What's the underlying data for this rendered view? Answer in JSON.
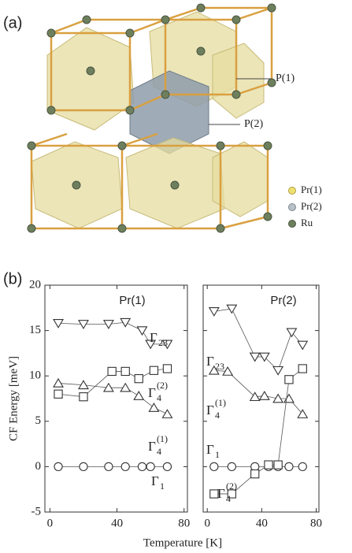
{
  "panel_a": {
    "label": "(a)",
    "annotations": [
      "P(1)",
      "P(2)"
    ],
    "legend": [
      "Pr(1)",
      "Pr(2)",
      "Ru"
    ]
  },
  "panel_b": {
    "label": "(b)",
    "xlabel": "Temperature [K]",
    "ylabel": "CF Energy [meV]"
  },
  "chart_data": [
    {
      "type": "line",
      "title": "Pr(1)",
      "xlim": [
        -3,
        82
      ],
      "xticks": [
        0,
        40,
        80
      ],
      "ylim": [
        -5,
        20
      ],
      "yticks": [
        -5,
        0,
        5,
        10,
        15,
        20
      ],
      "show_ytick_labels": true,
      "series": [
        {
          "name_base": "Γ",
          "name_sub": "23",
          "marker": "triangle-down",
          "x": [
            5,
            20,
            35,
            45,
            55,
            60,
            70
          ],
          "values": [
            15.8,
            15.7,
            15.7,
            15.9,
            15.0,
            13.5,
            13.5
          ]
        },
        {
          "name_base": "Γ",
          "name_sub": "4",
          "name_sup": "(2)",
          "marker": "square",
          "x": [
            5,
            20,
            37,
            45,
            53,
            62,
            70
          ],
          "values": [
            8.0,
            7.7,
            10.5,
            10.5,
            9.7,
            10.6,
            10.8
          ]
        },
        {
          "name_base": "Γ",
          "name_sub": "4",
          "name_sup": "(1)",
          "marker": "triangle-up",
          "x": [
            5,
            20,
            35,
            45,
            53,
            62,
            70
          ],
          "values": [
            9.2,
            9.0,
            8.7,
            8.7,
            7.8,
            6.5,
            5.8
          ]
        },
        {
          "name_base": "Γ",
          "name_sub": "1",
          "marker": "circle",
          "x": [
            5,
            20,
            35,
            45,
            55,
            60,
            70
          ],
          "values": [
            0,
            0,
            0,
            0,
            0,
            0,
            0
          ]
        }
      ]
    },
    {
      "type": "line",
      "title": "Pr(2)",
      "xlim": [
        -3,
        82
      ],
      "xticks": [
        0,
        40,
        80
      ],
      "ylim": [
        -5,
        20
      ],
      "yticks": [
        -5,
        0,
        5,
        10,
        15,
        20
      ],
      "show_ytick_labels": false,
      "series": [
        {
          "name_base": "Γ",
          "name_sub": "23",
          "marker": "triangle-down",
          "x": [
            5,
            18,
            35,
            42,
            52,
            62,
            70
          ],
          "values": [
            17.1,
            17.4,
            12.1,
            12.1,
            10.6,
            14.8,
            13.4
          ]
        },
        {
          "name_base": "Γ",
          "name_sub": "4",
          "name_sup": "(1)",
          "marker": "triangle-up",
          "x": [
            5,
            15,
            35,
            42,
            52,
            60,
            70
          ],
          "values": [
            10.6,
            10.5,
            7.7,
            7.8,
            7.5,
            7.5,
            5.8
          ]
        },
        {
          "name_base": "Γ",
          "name_sub": "1",
          "marker": "circle",
          "x": [
            5,
            18,
            35,
            45,
            52,
            60,
            70
          ],
          "values": [
            0,
            0,
            0,
            0,
            0,
            0,
            0
          ]
        },
        {
          "name_base": "Γ",
          "name_sub": "4",
          "name_sup": "(2)",
          "marker": "square",
          "x": [
            5,
            18,
            35,
            45,
            52,
            60,
            70
          ],
          "values": [
            -3.0,
            -3.0,
            -0.8,
            0.2,
            0.2,
            9.6,
            10.8
          ]
        }
      ]
    }
  ]
}
